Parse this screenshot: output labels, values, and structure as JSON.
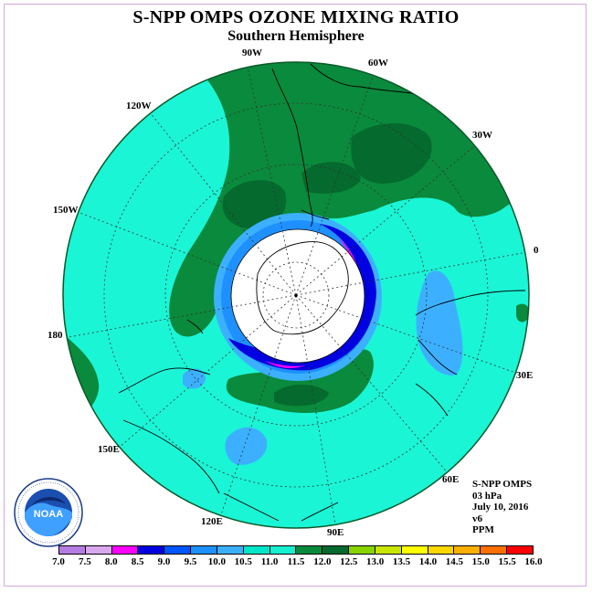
{
  "title": "S-NPP OMPS OZONE MIXING RATIO",
  "subtitle": "Southern Hemisphere",
  "longitude_labels": [
    {
      "text": "90W",
      "name": "lon-90w"
    },
    {
      "text": "60W",
      "name": "lon-60w"
    },
    {
      "text": "120W",
      "name": "lon-120w"
    },
    {
      "text": "30W",
      "name": "lon-30w"
    },
    {
      "text": "150W",
      "name": "lon-150w"
    },
    {
      "text": "0",
      "name": "lon-0"
    },
    {
      "text": "180",
      "name": "lon-180"
    },
    {
      "text": "30E",
      "name": "lon-30e"
    },
    {
      "text": "150E",
      "name": "lon-150e"
    },
    {
      "text": "60E",
      "name": "lon-60e"
    },
    {
      "text": "120E",
      "name": "lon-120e"
    },
    {
      "text": "90E",
      "name": "lon-90e"
    }
  ],
  "info": {
    "instrument": "S-NPP OMPS",
    "level": "03 hPa",
    "date": "July 10, 2016",
    "version": "v6",
    "units": "PPM"
  },
  "colorbar": {
    "ticks": [
      "7.0",
      "7.5",
      "8.0",
      "8.5",
      "9.0",
      "9.5",
      "10.0",
      "10.5",
      "11.0",
      "11.5",
      "12.0",
      "12.5",
      "13.0",
      "13.5",
      "14.0",
      "14.5",
      "15.0",
      "15.5",
      "16.0"
    ],
    "colors": [
      "#b77ce3",
      "#d9a8ef",
      "#ff00ff",
      "#0000e0",
      "#0055ff",
      "#1e90ff",
      "#3cb0ff",
      "#00e6c8",
      "#18f0d2",
      "#0a8a3c",
      "#056a2e",
      "#88d400",
      "#c8e600",
      "#ffff00",
      "#ffd700",
      "#ffb000",
      "#ff7000",
      "#ff0000",
      "#8b4513"
    ]
  },
  "colors": {
    "background_field": "#1af5d6",
    "field_dark_green": "#0a8a3c",
    "field_darker_green": "#056a2e",
    "field_blue": "#3cb0ff",
    "field_deep_blue": "#0000e0",
    "field_magenta": "#ff00ff",
    "frame_border": "#d8a8e0"
  },
  "logo_text": "NOAA"
}
